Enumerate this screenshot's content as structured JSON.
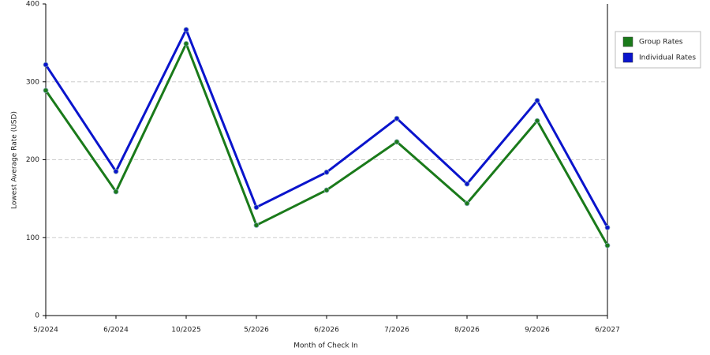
{
  "chart_data": {
    "type": "line",
    "x_label": "Month of Check In",
    "y_label": "Lowest Average Rate (USD)",
    "categories": [
      "5/2024",
      "6/2024",
      "10/2025",
      "5/2026",
      "6/2026",
      "7/2026",
      "8/2026",
      "9/2026",
      "6/2027"
    ],
    "series": [
      {
        "name": "Group Rates",
        "color": "#1a7a1a",
        "values": [
          289,
          159,
          349,
          116,
          161,
          223,
          144,
          250,
          90
        ]
      },
      {
        "name": "Individual Rates",
        "color": "#0a14cc",
        "values": [
          322,
          185,
          367,
          139,
          184,
          253,
          169,
          276,
          113
        ]
      }
    ],
    "ylim": [
      0,
      400
    ],
    "yticks": [
      0,
      100,
      200,
      300,
      400
    ],
    "grid": true,
    "legend": "right"
  }
}
